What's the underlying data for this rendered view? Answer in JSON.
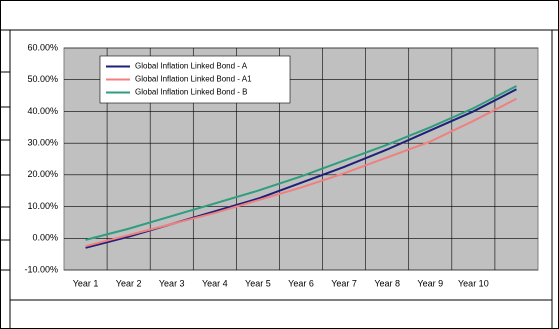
{
  "chart_data": {
    "type": "line",
    "categories": [
      "Year 1",
      "Year 2",
      "Year 3",
      "Year 4",
      "Year 5",
      "Year 6",
      "Year 7",
      "Year 8",
      "Year 9",
      "Year 10",
      null
    ],
    "series": [
      {
        "name": "Global Inflation Linked Bond - A",
        "color": "#1f1f7a",
        "values": [
          -3,
          0.5,
          4.5,
          8.5,
          12.5,
          17.5,
          22.5,
          28,
          34,
          40,
          47
        ]
      },
      {
        "name": "Global Inflation Linked Bond - A1",
        "color": "#f08080",
        "values": [
          -2.5,
          1,
          4.5,
          8,
          12,
          16,
          20.5,
          25.5,
          30.5,
          37,
          44
        ]
      },
      {
        "name": "Global Inflation Linked Bond - B",
        "color": "#2e9e7e",
        "values": [
          -0.5,
          3,
          7,
          11,
          15,
          19.5,
          24.5,
          29.5,
          35,
          41,
          48
        ]
      }
    ],
    "ylim": [
      -10,
      60
    ],
    "yticks": [
      {
        "value": -10,
        "label": "-10.00%"
      },
      {
        "value": 0,
        "label": "0.00%"
      },
      {
        "value": 10,
        "label": "10.00%"
      },
      {
        "value": 20,
        "label": "20.00%"
      },
      {
        "value": 30,
        "label": "30.00%"
      },
      {
        "value": 40,
        "label": "40.00%"
      },
      {
        "value": 50,
        "label": "50.00%"
      },
      {
        "value": 60,
        "label": "60.00%"
      }
    ],
    "grid": true,
    "legend": "upper left"
  }
}
